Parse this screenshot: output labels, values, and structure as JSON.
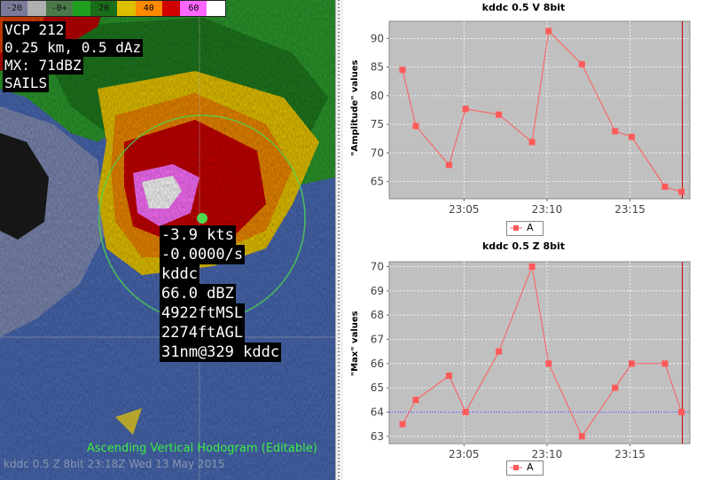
{
  "radar": {
    "colorbar": {
      "ticks": [
        "-20",
        "-0+",
        "20",
        "40",
        "60"
      ],
      "colors": [
        "#7a7a9a",
        "#b0b0b0",
        "#4a7a4a",
        "#1fa01f",
        "#1a6e1a",
        "#dcc000",
        "#ff8a00",
        "#d00000",
        "#ff66ff",
        "#ffffff"
      ]
    },
    "info_top": [
      "VCP 212",
      "0.25 km, 0.5 dAz",
      "MX: 71dBZ",
      "SAILS"
    ],
    "probe": [
      "-3.9 kts",
      "-0.0000/s",
      "kddc",
      "66.0 dBZ",
      "4922ftMSL",
      "2274ftAGL",
      "31nm@329 kddc"
    ],
    "bottom_title": "Ascending Vertical Hodogram (Editable)",
    "bottom_faded": "kddc 0.5 Z 8bit 23:18Z Wed 13 May 2015"
  },
  "charts": [
    {
      "title": "kddc 0.5  V 8bit",
      "ylabel": "\"Amplitude\" values",
      "legend": "A",
      "chart_data": {
        "type": "line",
        "x": [
          "23:01",
          "23:02",
          "23:04",
          "23:05",
          "23:07",
          "23:09",
          "23:10",
          "23:12",
          "23:14",
          "23:15",
          "23:17",
          "23:18"
        ],
        "series": [
          {
            "name": "A",
            "values": [
              84.5,
              74.7,
              67.9,
              77.7,
              76.7,
              71.9,
              91.3,
              85.5,
              73.8,
              72.8,
              64.1,
              63.2
            ]
          }
        ],
        "xticks": [
          "23:05",
          "23:10",
          "23:15"
        ],
        "yticks": [
          "65",
          "70",
          "75",
          "80",
          "85",
          "90"
        ],
        "ylim": [
          62,
          93
        ],
        "grid": true
      }
    },
    {
      "title": "kddc 0.5  Z 8bit",
      "ylabel": "\"Max\" values",
      "legend": "A",
      "chart_data": {
        "type": "line",
        "x": [
          "23:01",
          "23:02",
          "23:04",
          "23:05",
          "23:07",
          "23:09",
          "23:10",
          "23:12",
          "23:14",
          "23:15",
          "23:17",
          "23:18"
        ],
        "series": [
          {
            "name": "A",
            "values": [
              63.5,
              64.5,
              65.5,
              64,
              66.5,
              70,
              66,
              63,
              65,
              66,
              66,
              64
            ]
          }
        ],
        "xticks": [
          "23:05",
          "23:10",
          "23:15"
        ],
        "yticks": [
          "63",
          "64",
          "65",
          "66",
          "67",
          "68",
          "69",
          "70"
        ],
        "ylim": [
          62.7,
          70.2
        ],
        "grid": true,
        "reference_line": 64
      }
    }
  ],
  "colors": {
    "plot_bg": "#c0c0c0",
    "series": "#ff5a5a",
    "cursor": "#c00000",
    "ref_line": "#4a4aff"
  }
}
